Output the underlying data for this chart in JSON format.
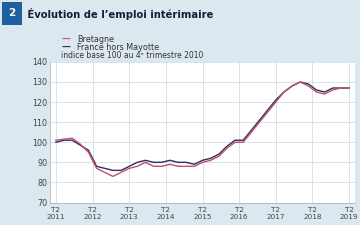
{
  "title_num": "2",
  "title_text": " Évolution de l’emploi intérimaire",
  "legend_bretagne": "Bretagne",
  "legend_france": "France hors Mayotte",
  "subtitle": "indice base 100 au 4ᵉ trimestre 2010",
  "color_bretagne": "#c0506a",
  "color_france": "#2e2e5e",
  "ylim": [
    70,
    140
  ],
  "yticks": [
    70,
    80,
    90,
    100,
    110,
    120,
    130,
    140
  ],
  "xtick_labels": [
    "T2\n2011",
    "T2\n2012",
    "T2\n2013",
    "T2\n2014",
    "T2\n2015",
    "T2\n2016",
    "T2\n2017",
    "T2\n2018",
    "T2\n2019"
  ],
  "bretagne": [
    101,
    101.5,
    102,
    99,
    95,
    87,
    85,
    83,
    85,
    87,
    88,
    90,
    88,
    88,
    89,
    88,
    88,
    88,
    90,
    91,
    93,
    97,
    100,
    100,
    105,
    110,
    115,
    120,
    125,
    128,
    130,
    128,
    125,
    124,
    126,
    127,
    127
  ],
  "france": [
    100,
    101,
    101,
    98.5,
    96,
    88,
    87,
    86,
    86,
    88,
    90,
    91,
    90,
    90,
    91,
    90,
    90,
    89,
    91,
    92,
    94,
    98,
    101,
    101,
    106,
    111,
    116,
    121,
    125,
    128,
    130,
    129,
    126,
    125,
    127,
    127,
    127
  ],
  "n_points": 37,
  "page_bg": "#dce8f0",
  "title_bg": "#b8cfe0",
  "num_bg": "#2060a0",
  "chart_bg": "#ffffff"
}
